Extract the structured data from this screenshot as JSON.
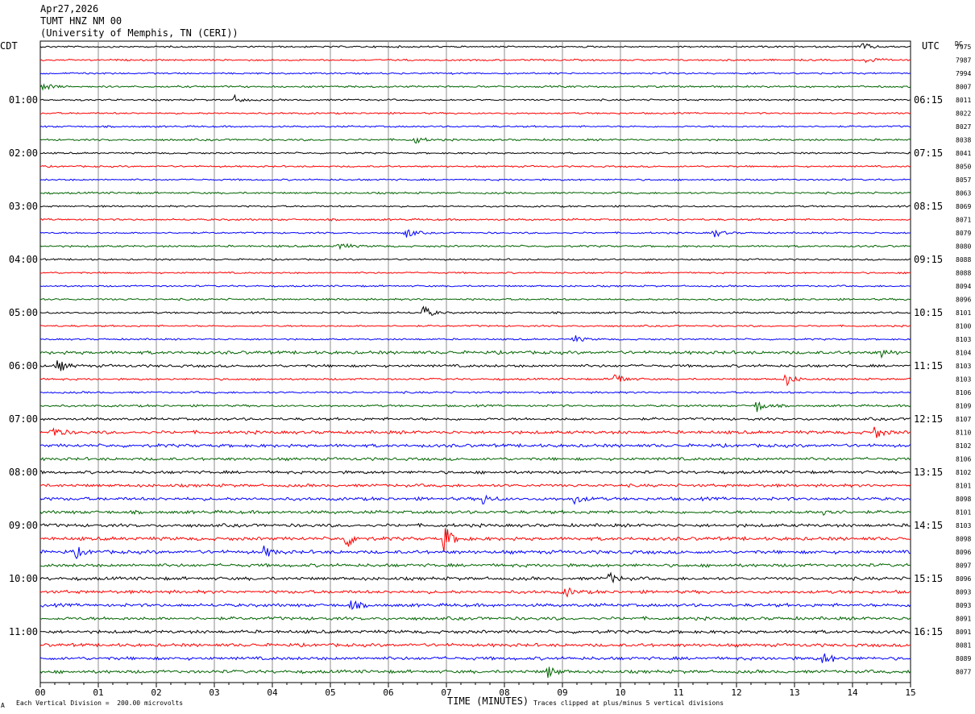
{
  "header": {
    "date": "Apr27,2026",
    "station": "TUMT HNZ NM 00",
    "institution": "(University of Memphis, TN (CERI))"
  },
  "labels": {
    "left_tz": "CDT",
    "right_tz": "UTC",
    "dc": "DC",
    "xlabel": "TIME (MINUTES)",
    "scale_note": "Each Vertical Division =  200.00 microvolts",
    "clip_note": "Traces clipped at plus/minus 5 vertical divisions",
    "corner_mark": "A"
  },
  "chart_data": {
    "type": "line",
    "title": "TUMT HNZ NM 00",
    "xlabel": "TIME (MINUTES)",
    "xlim": [
      0,
      15
    ],
    "x_ticks": [
      "00",
      "01",
      "02",
      "03",
      "04",
      "05",
      "06",
      "07",
      "08",
      "09",
      "10",
      "11",
      "12",
      "13",
      "14",
      "15"
    ],
    "trace_count": 48,
    "trace_minutes": 15,
    "colors": [
      "#000000",
      "#ff0000",
      "#0000ff",
      "#006400"
    ],
    "left_time_labels": [
      {
        "trace": 4,
        "label": "01:00"
      },
      {
        "trace": 8,
        "label": "02:00"
      },
      {
        "trace": 12,
        "label": "03:00"
      },
      {
        "trace": 16,
        "label": "04:00"
      },
      {
        "trace": 20,
        "label": "05:00"
      },
      {
        "trace": 24,
        "label": "06:00"
      },
      {
        "trace": 28,
        "label": "07:00"
      },
      {
        "trace": 32,
        "label": "08:00"
      },
      {
        "trace": 36,
        "label": "09:00"
      },
      {
        "trace": 40,
        "label": "10:00"
      },
      {
        "trace": 44,
        "label": "11:00"
      }
    ],
    "right_time_labels": [
      {
        "trace": 4,
        "label": "06:15"
      },
      {
        "trace": 8,
        "label": "07:15"
      },
      {
        "trace": 12,
        "label": "08:15"
      },
      {
        "trace": 16,
        "label": "09:15"
      },
      {
        "trace": 20,
        "label": "10:15"
      },
      {
        "trace": 24,
        "label": "11:15"
      },
      {
        "trace": 28,
        "label": "12:15"
      },
      {
        "trace": 32,
        "label": "13:15"
      },
      {
        "trace": 36,
        "label": "14:15"
      },
      {
        "trace": 40,
        "label": "15:15"
      },
      {
        "trace": 44,
        "label": "16:15"
      }
    ],
    "dc_offsets": [
      "7975",
      "7987",
      "7994",
      "8007",
      "8011",
      "8022",
      "8027",
      "8038",
      "8041",
      "8050",
      "8057",
      "8063",
      "8069",
      "8071",
      "8079",
      "8080",
      "8088",
      "8088",
      "8094",
      "8096",
      "8101",
      "8100",
      "8103",
      "8104",
      "8103",
      "8103",
      "8106",
      "8109",
      "8107",
      "8110",
      "8102",
      "8106",
      "8102",
      "8101",
      "8098",
      "8101",
      "8103",
      "8098",
      "8096",
      "8097",
      "8096",
      "8093",
      "8093",
      "8091",
      "8091",
      "8081",
      "8089",
      "8077"
    ],
    "noise_level": [
      0.7,
      0.7,
      0.7,
      0.8,
      0.7,
      0.7,
      0.7,
      0.8,
      0.7,
      0.7,
      0.7,
      0.8,
      0.7,
      0.8,
      0.7,
      0.8,
      0.7,
      0.7,
      0.7,
      0.8,
      0.8,
      0.7,
      0.7,
      1.3,
      1.1,
      0.8,
      0.8,
      0.9,
      1.1,
      1.3,
      1.3,
      1.2,
      1.2,
      1.2,
      1.3,
      1.3,
      1.3,
      1.4,
      1.4,
      1.3,
      1.3,
      1.3,
      1.3,
      1.3,
      1.3,
      1.3,
      1.3,
      1.3
    ],
    "events": [
      {
        "trace": 0,
        "minute": 14.15,
        "amplitude": 6
      },
      {
        "trace": 1,
        "minute": 14.25,
        "amplitude": 6
      },
      {
        "trace": 3,
        "minute": 0.05,
        "amplitude": 6
      },
      {
        "trace": 4,
        "minute": 3.35,
        "amplitude": 5
      },
      {
        "trace": 7,
        "minute": 6.45,
        "amplitude": 5
      },
      {
        "trace": 14,
        "minute": 6.3,
        "amplitude": 7
      },
      {
        "trace": 14,
        "minute": 11.6,
        "amplitude": 6
      },
      {
        "trace": 15,
        "minute": 5.15,
        "amplitude": 6
      },
      {
        "trace": 20,
        "minute": 6.6,
        "amplitude": 9
      },
      {
        "trace": 22,
        "minute": 9.2,
        "amplitude": 5
      },
      {
        "trace": 23,
        "minute": 14.5,
        "amplitude": 5
      },
      {
        "trace": 24,
        "minute": 0.3,
        "amplitude": 8
      },
      {
        "trace": 25,
        "minute": 9.9,
        "amplitude": 9
      },
      {
        "trace": 25,
        "minute": 12.85,
        "amplitude": 9
      },
      {
        "trace": 27,
        "minute": 12.35,
        "amplitude": 8
      },
      {
        "trace": 29,
        "minute": 0.2,
        "amplitude": 8
      },
      {
        "trace": 29,
        "minute": 14.35,
        "amplitude": 10
      },
      {
        "trace": 34,
        "minute": 7.6,
        "amplitude": 8
      },
      {
        "trace": 34,
        "minute": 9.2,
        "amplitude": 6
      },
      {
        "trace": 35,
        "minute": 13.5,
        "amplitude": 7
      },
      {
        "trace": 37,
        "minute": 5.25,
        "amplitude": 14
      },
      {
        "trace": 37,
        "minute": 6.95,
        "amplitude": 18
      },
      {
        "trace": 38,
        "minute": 3.85,
        "amplitude": 7
      },
      {
        "trace": 38,
        "minute": 0.6,
        "amplitude": 7
      },
      {
        "trace": 40,
        "minute": 9.8,
        "amplitude": 7
      },
      {
        "trace": 41,
        "minute": 9.05,
        "amplitude": 6
      },
      {
        "trace": 42,
        "minute": 5.35,
        "amplitude": 6
      },
      {
        "trace": 46,
        "minute": 13.5,
        "amplitude": 9
      },
      {
        "trace": 47,
        "minute": 8.75,
        "amplitude": 7
      }
    ]
  }
}
